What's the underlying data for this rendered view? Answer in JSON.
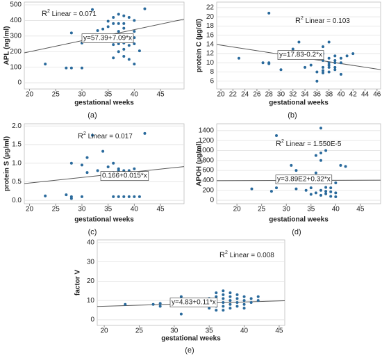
{
  "chart_data": [
    {
      "type": "scatter",
      "caption": "(a)",
      "x_label": "gestational weeks",
      "y_label": "APL (ng/ml)",
      "color": "#2a6a9c",
      "grid": "y",
      "r2": {
        "base": "R",
        "exp": "2",
        "text": " Linear = 0.071"
      },
      "fit": {
        "label": "y=57.39+7.09*x",
        "intercept": 57.39,
        "slope": 7.09
      },
      "xlim": [
        19,
        49.5
      ],
      "ylim": [
        -40,
        518
      ],
      "xticks": [
        20,
        25,
        30,
        35,
        40,
        45
      ],
      "yticks": [
        0,
        100,
        200,
        300,
        400,
        500
      ],
      "x": [
        23,
        27,
        28,
        28,
        30,
        30,
        32,
        33,
        34,
        35,
        35,
        35,
        36,
        36,
        36,
        36,
        36,
        37,
        37,
        37,
        37,
        37,
        37,
        38,
        38,
        38,
        38,
        38,
        38,
        39,
        39,
        39,
        39,
        40,
        40,
        40,
        40,
        40,
        41,
        42
      ],
      "y": [
        120,
        95,
        95,
        320,
        95,
        255,
        470,
        335,
        345,
        360,
        300,
        395,
        160,
        245,
        300,
        380,
        420,
        440,
        380,
        300,
        330,
        250,
        200,
        430,
        380,
        350,
        255,
        215,
        170,
        420,
        300,
        240,
        150,
        400,
        330,
        290,
        120,
        250,
        205,
        475
      ]
    },
    {
      "type": "scatter",
      "caption": "(b)",
      "x_label": "gestational weeks",
      "y_label": "protein C (µg/dl)",
      "color": "#2a6a9c",
      "grid": "y",
      "r2": {
        "base": "R",
        "exp": "2",
        "text": " Linear = 0.103"
      },
      "fit": {
        "label": "y=17.83-0.2*x",
        "intercept": 17.83,
        "slope": -0.2
      },
      "xlim": [
        19.3,
        46.6
      ],
      "ylim": [
        4.3,
        23.2
      ],
      "xticks": [
        20,
        22,
        24,
        26,
        28,
        30,
        32,
        34,
        36,
        38,
        40,
        42,
        44,
        46
      ],
      "yticks": [
        6,
        8,
        10,
        12,
        14,
        16,
        18,
        20,
        22
      ],
      "x": [
        23,
        27,
        28,
        28,
        28,
        30,
        32,
        33,
        34,
        35,
        36,
        36,
        36,
        37,
        37,
        37,
        37,
        37,
        37,
        38,
        38,
        38,
        38,
        38,
        38,
        39,
        39,
        39,
        39,
        39,
        40,
        40,
        40,
        41,
        42
      ],
      "y": [
        11,
        10,
        20.8,
        10,
        9.8,
        8.5,
        13,
        14.5,
        9,
        9.5,
        6,
        8,
        12,
        13.5,
        12,
        10.5,
        9,
        8.3,
        7.8,
        14.5,
        11,
        10,
        9.5,
        9,
        8,
        11.5,
        10.5,
        10,
        9,
        8.5,
        11,
        10,
        7.5,
        11.5,
        12
      ]
    },
    {
      "type": "scatter",
      "caption": "(c)",
      "x_label": "gestational weeks",
      "y_label": "protein S (µg/ml)",
      "color": "#2a6a9c",
      "grid": "y",
      "r2": {
        "base": "R",
        "exp": "2",
        "text": " Linear = 0.017"
      },
      "fit": {
        "label": "0.166+0.015*x",
        "intercept": 0.166,
        "slope": 0.015
      },
      "xlim": [
        19,
        49.5
      ],
      "ylim": [
        -0.09,
        2.06
      ],
      "xticks": [
        20,
        25,
        30,
        35,
        40,
        45
      ],
      "yticks": [
        {
          "value": 0,
          "label": "0.0"
        },
        0.5,
        {
          "value": 1,
          "label": "1.0"
        },
        1.5,
        {
          "value": 2,
          "label": "2.0"
        }
      ],
      "x": [
        23,
        27,
        28,
        28,
        28,
        30,
        30,
        31,
        31,
        32,
        33,
        34,
        35,
        35,
        36,
        36,
        36,
        36,
        37,
        37,
        37,
        37,
        37,
        38,
        38,
        38,
        38,
        39,
        39,
        39,
        40,
        40,
        41,
        42
      ],
      "y": [
        0.12,
        0.15,
        1.0,
        0.05,
        0.1,
        0.95,
        0.1,
        1.15,
        0.75,
        1.75,
        0.8,
        1.32,
        0.7,
        0.9,
        0.6,
        0.75,
        1.0,
        0.1,
        0.8,
        0.7,
        0.85,
        0.6,
        0.1,
        0.8,
        0.75,
        0.65,
        0.1,
        0.8,
        0.7,
        0.1,
        0.85,
        0.1,
        0.1,
        1.8
      ]
    },
    {
      "type": "scatter",
      "caption": "(d)",
      "x_label": "gestational weeks",
      "y_label": "APOH (µg/ml)",
      "color": "#2a6a9c",
      "grid": "y",
      "r2": {
        "base": "R",
        "exp": "2",
        "text": " Linear = 1.550E-5"
      },
      "fit": {
        "label": "y=3.89E2+0.32*x",
        "intercept": 389,
        "slope": 0.32
      },
      "xlim": [
        15.9,
        49.1
      ],
      "ylim": [
        -69,
        1537
      ],
      "xticks": [
        20,
        25,
        30,
        35,
        40,
        45
      ],
      "yticks": [
        0,
        200,
        400,
        600,
        800,
        1000,
        1200,
        1400
      ],
      "x": [
        23,
        27,
        28,
        28,
        30,
        31,
        32,
        32,
        34,
        35,
        35,
        36,
        36,
        36,
        37,
        37,
        37,
        37,
        37,
        37,
        38,
        38,
        38,
        38,
        38,
        39,
        39,
        39,
        39,
        40,
        40,
        40,
        41,
        42
      ],
      "y": [
        230,
        180,
        1300,
        250,
        400,
        700,
        600,
        230,
        200,
        120,
        250,
        150,
        550,
        900,
        1450,
        950,
        800,
        400,
        200,
        100,
        1000,
        480,
        260,
        180,
        130,
        400,
        250,
        170,
        80,
        350,
        150,
        70,
        700,
        680
      ]
    },
    {
      "type": "scatter",
      "caption": "(e)",
      "x_label": "gestational weeks",
      "y_label": "factor V",
      "color": "#2a6a9c",
      "grid": "y",
      "r2": {
        "base": "R",
        "exp": "2",
        "text": " Linear = 0.008"
      },
      "fit": {
        "label": "y=4.83+0.11*x",
        "intercept": 4.83,
        "slope": 0.11
      },
      "xlim": [
        19,
        45.8
      ],
      "ylim": [
        -2.9,
        41.4
      ],
      "xticks": [
        20,
        25,
        30,
        35,
        40,
        45
      ],
      "yticks": [
        0,
        10,
        20,
        30,
        40
      ],
      "x": [
        23,
        27,
        28,
        28,
        30,
        31,
        31,
        33,
        34,
        35,
        35,
        35,
        36,
        36,
        36,
        36,
        36,
        37,
        37,
        37,
        37,
        37,
        37,
        38,
        38,
        38,
        38,
        38,
        39,
        39,
        39,
        39,
        40,
        40,
        40,
        40,
        41,
        41,
        42,
        42
      ],
      "y": [
        8,
        8,
        8.5,
        7,
        10,
        12,
        3,
        8,
        10,
        11,
        8,
        6,
        14,
        12,
        9,
        7,
        5,
        15,
        13,
        11,
        9,
        7,
        5,
        14,
        12,
        10,
        8,
        6,
        13,
        11,
        9,
        7,
        12,
        10,
        8,
        6,
        11,
        9,
        12,
        10
      ]
    }
  ]
}
